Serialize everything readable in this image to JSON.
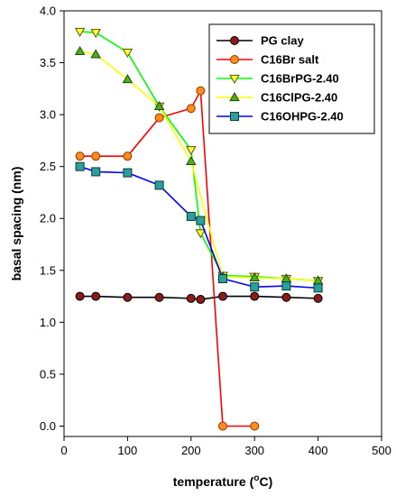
{
  "chart_data": {
    "type": "line",
    "xlabel": "temperature",
    "xlabel_unit_prefix": "(",
    "xlabel_unit_sup": "o",
    "xlabel_unit_suffix": "C)",
    "ylabel": "basal spacing (nm)",
    "xlim": [
      0,
      500
    ],
    "ylim": [
      -0.1,
      4.0
    ],
    "xticks": [
      0,
      100,
      200,
      300,
      400,
      500
    ],
    "xtick_labels": [
      "0",
      "100",
      "200",
      "300",
      "400",
      "500"
    ],
    "yticks": [
      0.0,
      0.5,
      1.0,
      1.5,
      2.0,
      2.5,
      3.0,
      3.5,
      4.0
    ],
    "ytick_labels": [
      "0.0",
      "0.5",
      "1.0",
      "1.5",
      "2.0",
      "2.5",
      "3.0",
      "3.5",
      "4.0"
    ],
    "grid": false,
    "legend_position": "top-right",
    "series": [
      {
        "name": "PG clay",
        "line_color": "#000000",
        "marker": "circle",
        "marker_fill": "#8b1a1a",
        "marker_stroke": "#000000",
        "x": [
          25,
          50,
          100,
          150,
          200,
          215,
          250,
          300,
          350,
          400
        ],
        "y": [
          1.25,
          1.25,
          1.24,
          1.24,
          1.23,
          1.22,
          1.25,
          1.25,
          1.24,
          1.23
        ]
      },
      {
        "name": "C16Br salt",
        "line_color": "#ff0000",
        "marker": "circle",
        "marker_fill": "#ff8c1a",
        "marker_stroke": "#8b3a00",
        "x": [
          25,
          50,
          100,
          150,
          200,
          215,
          250,
          300
        ],
        "y": [
          2.6,
          2.6,
          2.6,
          2.97,
          3.06,
          3.23,
          0.0,
          0.0
        ]
      },
      {
        "name": "C16BrPG-2.40",
        "line_color": "#00ff00",
        "marker": "triangle-down",
        "marker_fill": "#ffff33",
        "marker_stroke": "#555500",
        "x": [
          25,
          50,
          100,
          150,
          200,
          215,
          250,
          300,
          350,
          400
        ],
        "y": [
          3.8,
          3.79,
          3.6,
          3.08,
          2.66,
          1.86,
          1.45,
          1.44,
          1.42,
          1.4
        ]
      },
      {
        "name": "C16ClPG-2.40",
        "line_color": "#ffff00",
        "marker": "triangle-up",
        "marker_fill": "#4caf20",
        "marker_stroke": "#1f4a00",
        "x": [
          25,
          50,
          100,
          150,
          200,
          250,
          300,
          350,
          400
        ],
        "y": [
          3.61,
          3.58,
          3.34,
          3.08,
          2.55,
          1.44,
          1.43,
          1.42,
          1.4
        ]
      },
      {
        "name": "C16OHPG-2.40",
        "line_color": "#0000ff",
        "marker": "square",
        "marker_fill": "#2aa198",
        "marker_stroke": "#0d3b38",
        "x": [
          25,
          50,
          100,
          150,
          200,
          215,
          250,
          300,
          350,
          400
        ],
        "y": [
          2.5,
          2.45,
          2.44,
          2.32,
          2.02,
          1.98,
          1.42,
          1.34,
          1.35,
          1.33
        ]
      }
    ]
  }
}
